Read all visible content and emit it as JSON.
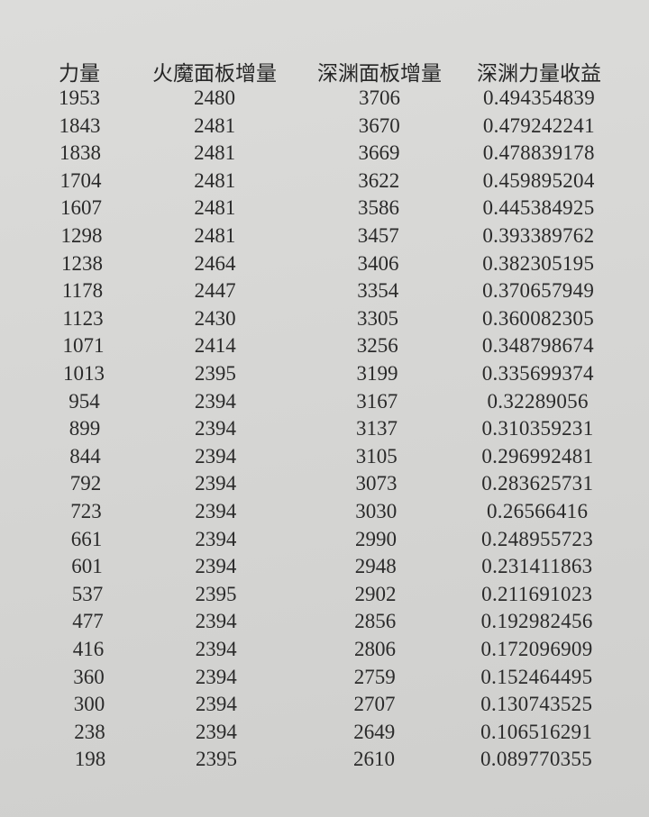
{
  "table": {
    "headers": [
      "力量",
      "火魔面板增量",
      "深渊面板增量",
      "深渊力量收益"
    ],
    "rows": [
      [
        "1953",
        "2480",
        "3706",
        "0.494354839"
      ],
      [
        "1843",
        "2481",
        "3670",
        "0.479242241"
      ],
      [
        "1838",
        "2481",
        "3669",
        "0.478839178"
      ],
      [
        "1704",
        "2481",
        "3622",
        "0.459895204"
      ],
      [
        "1607",
        "2481",
        "3586",
        "0.445384925"
      ],
      [
        "1298",
        "2481",
        "3457",
        "0.393389762"
      ],
      [
        "1238",
        "2464",
        "3406",
        "0.382305195"
      ],
      [
        "1178",
        "2447",
        "3354",
        "0.370657949"
      ],
      [
        "1123",
        "2430",
        "3305",
        "0.360082305"
      ],
      [
        "1071",
        "2414",
        "3256",
        "0.348798674"
      ],
      [
        "1013",
        "2395",
        "3199",
        "0.335699374"
      ],
      [
        "954",
        "2394",
        "3167",
        "0.32289056"
      ],
      [
        "899",
        "2394",
        "3137",
        "0.310359231"
      ],
      [
        "844",
        "2394",
        "3105",
        "0.296992481"
      ],
      [
        "792",
        "2394",
        "3073",
        "0.283625731"
      ],
      [
        "723",
        "2394",
        "3030",
        "0.26566416"
      ],
      [
        "661",
        "2394",
        "2990",
        "0.248955723"
      ],
      [
        "601",
        "2394",
        "2948",
        "0.231411863"
      ],
      [
        "537",
        "2395",
        "2902",
        "0.211691023"
      ],
      [
        "477",
        "2394",
        "2856",
        "0.192982456"
      ],
      [
        "416",
        "2394",
        "2806",
        "0.172096909"
      ],
      [
        "360",
        "2394",
        "2759",
        "0.152464495"
      ],
      [
        "300",
        "2394",
        "2707",
        "0.130743525"
      ],
      [
        "238",
        "2394",
        "2649",
        "0.106516291"
      ],
      [
        "198",
        "2395",
        "2610",
        "0.089770355"
      ]
    ]
  }
}
